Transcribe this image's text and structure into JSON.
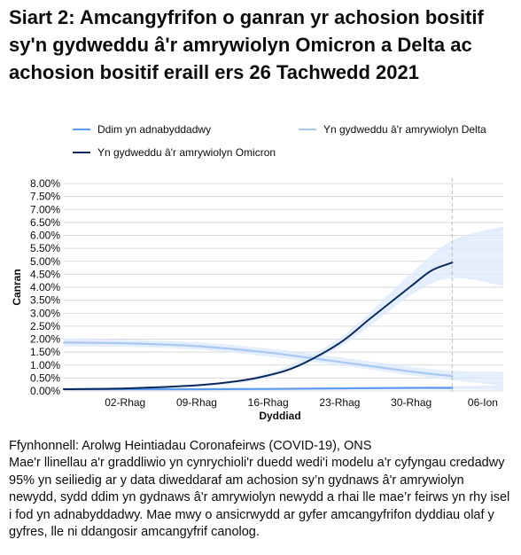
{
  "title": "Siart 2: Amcangyfrifon o ganran yr achosion bositif sy'n gydweddu â'r amrywiolyn Omicron a Delta ac achosion bositif eraill ers 26 Tachwedd 2021",
  "source": "Ffynhonnell: Arolwg Heintiadau Coronafeirws (COVID-19), ONS",
  "note": "Mae'r llinellau a'r graddliwio yn cynrychioli'r duedd wedi'i modelu a'r cyfyngau credadwy 95% yn seiliedig ar y data diweddaraf am achosion sy’n gydnaws â'r amrywiolyn newydd, sydd ddim yn gydnaws â'r amrywiolyn newydd a rhai lle mae’r feirws yn rhy isel i fod yn adnabyddadwy. Mae mwy o ansicrwydd ar gyfer amcangyfrifon dyddiau olaf y gyfres, lle ni ddangosir amcangyfrif canolog.",
  "colors": {
    "unknown": "#5b9bf0",
    "delta": "#a9c9f5",
    "omicron": "#0b2a5b",
    "band": "#dbe8fb",
    "grid": "#d9d9d9",
    "axis_text": "#0b0c0c"
  },
  "chart_data": {
    "type": "line",
    "xlabel": "Dyddiad",
    "ylabel": "Canran",
    "ylim": [
      0,
      8
    ],
    "yticks": [
      0,
      0.5,
      1,
      1.5,
      2,
      2.5,
      3,
      3.5,
      4,
      4.5,
      5,
      5.5,
      6,
      6.5,
      7,
      7.5,
      8
    ],
    "ytick_labels": [
      "0.00%",
      "0.50%",
      "1.00%",
      "1.50%",
      "2.00%",
      "2.50%",
      "3.00%",
      "3.50%",
      "4.00%",
      "4.50%",
      "5.00%",
      "5.50%",
      "6.00%",
      "6.50%",
      "7.00%",
      "7.50%",
      "8.00%"
    ],
    "x_start": "2021-11-26",
    "x_end": "2022-01-08",
    "xticks": [
      {
        "date": "2021-12-02",
        "label": "02-Rhag"
      },
      {
        "date": "2021-12-09",
        "label": "09-Rhag"
      },
      {
        "date": "2021-12-16",
        "label": "16-Rhag"
      },
      {
        "date": "2021-12-23",
        "label": "23-Rhag"
      },
      {
        "date": "2021-12-30",
        "label": "30-Rhag"
      },
      {
        "date": "2022-01-06",
        "label": "06-Ion"
      }
    ],
    "reference_line_date": "2022-01-03",
    "legend": [
      {
        "key": "unknown",
        "label": "Ddim yn adnabyddadwy"
      },
      {
        "key": "delta",
        "label": "Yn gydweddu â'r amrywiolyn Delta"
      },
      {
        "key": "omicron",
        "label": "Yn gydweddu â'r amrywiolyn Omicron"
      }
    ],
    "series": [
      {
        "name": "Ddim yn adnabyddadwy",
        "key": "unknown",
        "x": [
          "2021-11-26",
          "2021-12-02",
          "2021-12-09",
          "2021-12-16",
          "2021-12-23",
          "2021-12-30",
          "2022-01-03"
        ],
        "values": [
          0.07,
          0.07,
          0.07,
          0.08,
          0.1,
          0.12,
          0.12
        ],
        "band_x": [
          "2021-11-26",
          "2021-12-09",
          "2021-12-23",
          "2022-01-03",
          "2022-01-08"
        ],
        "band_lower": [
          0.03,
          0.03,
          0.05,
          0.06,
          0.04
        ],
        "band_upper": [
          0.11,
          0.11,
          0.14,
          0.18,
          0.22
        ]
      },
      {
        "name": "Yn gydweddu â'r amrywiolyn Delta",
        "key": "delta",
        "x": [
          "2021-11-26",
          "2021-12-02",
          "2021-12-09",
          "2021-12-16",
          "2021-12-23",
          "2021-12-30",
          "2022-01-03"
        ],
        "values": [
          1.87,
          1.84,
          1.73,
          1.48,
          1.12,
          0.75,
          0.57
        ],
        "band_x": [
          "2021-11-26",
          "2021-12-02",
          "2021-12-09",
          "2021-12-16",
          "2021-12-23",
          "2021-12-30",
          "2022-01-03",
          "2022-01-08"
        ],
        "band_lower": [
          1.72,
          1.7,
          1.6,
          1.33,
          0.98,
          0.6,
          0.42,
          0.2
        ],
        "band_upper": [
          2.02,
          1.98,
          1.88,
          1.64,
          1.3,
          0.94,
          0.78,
          0.75
        ]
      },
      {
        "name": "Yn gydweddu â'r amrywiolyn Omicron",
        "key": "omicron",
        "x": [
          "2021-11-26",
          "2021-12-02",
          "2021-12-09",
          "2021-12-13",
          "2021-12-16",
          "2021-12-19",
          "2021-12-23",
          "2021-12-26",
          "2021-12-30",
          "2022-01-01",
          "2022-01-03"
        ],
        "values": [
          0.07,
          0.1,
          0.22,
          0.38,
          0.6,
          0.98,
          1.85,
          2.8,
          4.05,
          4.65,
          4.95
        ],
        "band_x": [
          "2021-11-26",
          "2021-12-09",
          "2021-12-16",
          "2021-12-23",
          "2021-12-30",
          "2022-01-03",
          "2022-01-08"
        ],
        "band_lower": [
          0.05,
          0.18,
          0.52,
          1.7,
          3.7,
          4.35,
          4.05
        ],
        "band_upper": [
          0.1,
          0.26,
          0.7,
          2.05,
          4.55,
          5.8,
          6.35
        ]
      }
    ]
  }
}
